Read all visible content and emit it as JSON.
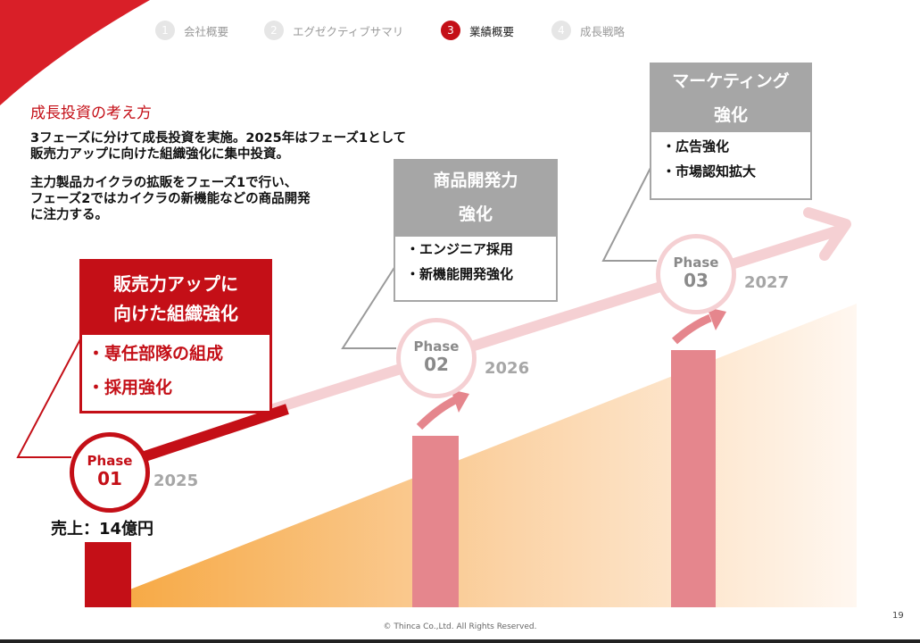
{
  "nav": [
    {
      "num": "1",
      "label": "会社概要"
    },
    {
      "num": "2",
      "label": "エグゼクティブサマリ"
    },
    {
      "num": "3",
      "label": "業績概要"
    },
    {
      "num": "4",
      "label": "成長戦略"
    }
  ],
  "section_title": "成長投資の考え方",
  "paragraphs": {
    "p1_line1": "3フェーズに分けて成長投資を実施。2025年はフェーズ1として",
    "p1_line2": "販売力アップに向けた組織強化に集中投資。",
    "p2_line1": "主力製品カイクラの拡販をフェーズ1で行い、",
    "p2_line2": "フェーズ2ではカイクラの新機能などの商品開発",
    "p2_line3": "に注力する。"
  },
  "phase1": {
    "heading_line1": "販売力アップに",
    "heading_line2": "向けた組織強化",
    "items": [
      "・専任部隊の組成",
      "・採用強化"
    ],
    "label": "Phase",
    "number": "01",
    "year": "2025",
    "sales": "売上：14億円"
  },
  "phase2": {
    "heading_line1": "商品開発力",
    "heading_line2": "強化",
    "items": [
      "・エンジニア採用",
      "・新機能開発強化"
    ],
    "label": "Phase",
    "number": "02",
    "year": "2026"
  },
  "phase3": {
    "heading_line1": "マーケティング",
    "heading_line2": "強化",
    "items": [
      "・広告強化",
      "・市場認知拡大"
    ],
    "label": "Phase",
    "number": "03",
    "year": "2027"
  },
  "footer": {
    "copyright": "© Thinca Co.,Ltd. All Rights Reserved.",
    "page_number": "19"
  },
  "colors": {
    "brand_red": "#c40f17",
    "gray": "#a6a6a6",
    "pink": "#e5868d",
    "light_pink": "#f5d0d3",
    "orange": "#f6a53b"
  }
}
